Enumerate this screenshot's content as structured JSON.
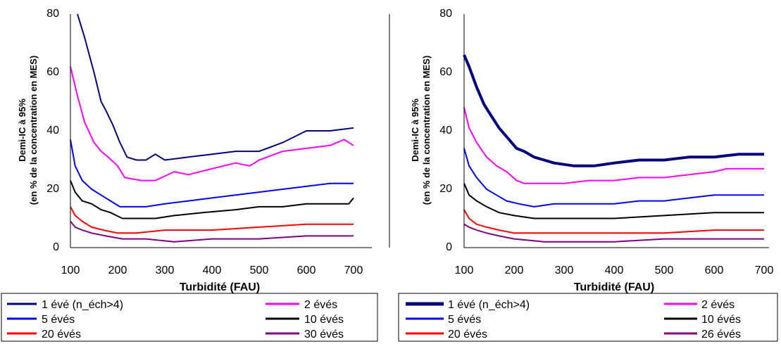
{
  "chart_data": [
    {
      "type": "line",
      "xlabel": "Turbidité (FAU)",
      "ylabel_line1": "Demi-IC à 95%",
      "ylabel_line2": "(en % de la  concentration en MES)",
      "xlim": [
        100,
        700
      ],
      "ylim": [
        0,
        80
      ],
      "xticks": [
        "100",
        "200",
        "300",
        "400",
        "500",
        "600",
        "700"
      ],
      "yticks": [
        "0",
        "20",
        "40",
        "60",
        "80"
      ],
      "grid": false,
      "legend_position": "bottom",
      "series": [
        {
          "name": "1 évé (n_éch>4)",
          "color": "#000080",
          "width": 2,
          "x": [
            115,
            130,
            150,
            165,
            175,
            190,
            205,
            220,
            240,
            260,
            280,
            300,
            350,
            400,
            450,
            500,
            550,
            600,
            650,
            700
          ],
          "y": [
            80,
            72,
            60,
            50,
            47,
            42,
            36,
            31,
            30,
            30,
            32,
            30,
            31,
            32,
            33,
            33,
            36,
            40,
            40,
            41
          ]
        },
        {
          "name": "2 évés",
          "color": "#ff00ff",
          "width": 2,
          "x": [
            100,
            115,
            130,
            150,
            165,
            180,
            200,
            215,
            250,
            280,
            320,
            350,
            400,
            450,
            480,
            500,
            550,
            600,
            650,
            680,
            700
          ],
          "y": [
            62,
            52,
            43,
            36,
            33,
            31,
            28,
            24,
            23,
            23,
            26,
            25,
            27,
            29,
            28,
            30,
            33,
            34,
            35,
            37,
            35
          ]
        },
        {
          "name": "5 évés",
          "color": "#0000ff",
          "width": 2,
          "x": [
            100,
            110,
            125,
            145,
            165,
            185,
            205,
            230,
            260,
            300,
            350,
            400,
            450,
            500,
            550,
            600,
            650,
            700
          ],
          "y": [
            37,
            28,
            23,
            20,
            18,
            16,
            14,
            14,
            14,
            15,
            16,
            17,
            18,
            19,
            20,
            21,
            22,
            22
          ]
        },
        {
          "name": "10 évés",
          "color": "#000000",
          "width": 2,
          "x": [
            100,
            110,
            125,
            145,
            165,
            185,
            210,
            240,
            280,
            320,
            380,
            450,
            500,
            550,
            600,
            650,
            690,
            700
          ],
          "y": [
            23,
            19,
            16,
            15,
            13,
            12,
            10,
            10,
            10,
            11,
            12,
            13,
            14,
            14,
            15,
            15,
            15,
            17
          ]
        },
        {
          "name": "20 évés",
          "color": "#ff0000",
          "width": 2,
          "x": [
            100,
            110,
            125,
            145,
            170,
            200,
            240,
            300,
            400,
            500,
            600,
            700
          ],
          "y": [
            14,
            11,
            9,
            7,
            6,
            5,
            5,
            6,
            6,
            7,
            8,
            8
          ]
        },
        {
          "name": "30 évés",
          "color": "#800080",
          "width": 2,
          "x": [
            100,
            110,
            125,
            145,
            175,
            210,
            260,
            320,
            400,
            500,
            600,
            700
          ],
          "y": [
            9,
            7,
            6,
            5,
            4,
            3,
            3,
            2,
            3,
            3,
            4,
            4
          ]
        }
      ]
    },
    {
      "type": "line",
      "xlabel": "Turbidité (FAU)",
      "ylabel_line1": "Demi-IC à 95%",
      "ylabel_line2": "(en % de la  concentration en MES)",
      "xlim": [
        100,
        700
      ],
      "ylim": [
        0,
        80
      ],
      "xticks": [
        "100",
        "200",
        "300",
        "400",
        "500",
        "600",
        "700"
      ],
      "yticks": [
        "0",
        "20",
        "40",
        "60",
        "80"
      ],
      "grid": false,
      "legend_position": "bottom",
      "series": [
        {
          "name": "1 évé (n_éch>4)",
          "color": "#000080",
          "width": 4,
          "x": [
            100,
            110,
            125,
            140,
            155,
            170,
            190,
            205,
            220,
            240,
            260,
            280,
            320,
            360,
            400,
            450,
            500,
            550,
            600,
            650,
            700
          ],
          "y": [
            66,
            62,
            55,
            49,
            45,
            41,
            37,
            34,
            33,
            31,
            30,
            29,
            28,
            28,
            29,
            30,
            30,
            31,
            31,
            32,
            32
          ]
        },
        {
          "name": "2 évés",
          "color": "#ff00ff",
          "width": 2,
          "x": [
            100,
            110,
            125,
            145,
            165,
            185,
            205,
            220,
            260,
            300,
            350,
            400,
            450,
            500,
            550,
            600,
            625,
            650,
            700
          ],
          "y": [
            48,
            41,
            36,
            31,
            28,
            26,
            23,
            22,
            22,
            22,
            23,
            23,
            24,
            24,
            25,
            26,
            27,
            27,
            27
          ]
        },
        {
          "name": "5 évés",
          "color": "#0000ff",
          "width": 2,
          "x": [
            100,
            110,
            125,
            145,
            165,
            185,
            210,
            240,
            280,
            330,
            400,
            450,
            500,
            550,
            600,
            650,
            700
          ],
          "y": [
            34,
            28,
            24,
            20,
            18,
            16,
            15,
            14,
            15,
            15,
            15,
            16,
            16,
            17,
            18,
            18,
            18
          ]
        },
        {
          "name": "10 évés",
          "color": "#000000",
          "width": 2,
          "x": [
            100,
            110,
            125,
            145,
            170,
            200,
            240,
            300,
            400,
            500,
            600,
            650,
            700
          ],
          "y": [
            22,
            18,
            16,
            14,
            12,
            11,
            10,
            10,
            10,
            11,
            12,
            12,
            12
          ]
        },
        {
          "name": "20 évés",
          "color": "#ff0000",
          "width": 2,
          "x": [
            100,
            110,
            125,
            145,
            170,
            200,
            250,
            300,
            400,
            500,
            600,
            700
          ],
          "y": [
            13,
            10,
            8,
            7,
            6,
            5,
            5,
            5,
            5,
            5,
            6,
            6
          ]
        },
        {
          "name": "26 évés",
          "color": "#800080",
          "width": 2,
          "x": [
            100,
            110,
            125,
            145,
            170,
            200,
            260,
            300,
            400,
            500,
            600,
            700
          ],
          "y": [
            8,
            7,
            6,
            5,
            4,
            3,
            2,
            2,
            2,
            3,
            3,
            3
          ]
        }
      ]
    }
  ]
}
